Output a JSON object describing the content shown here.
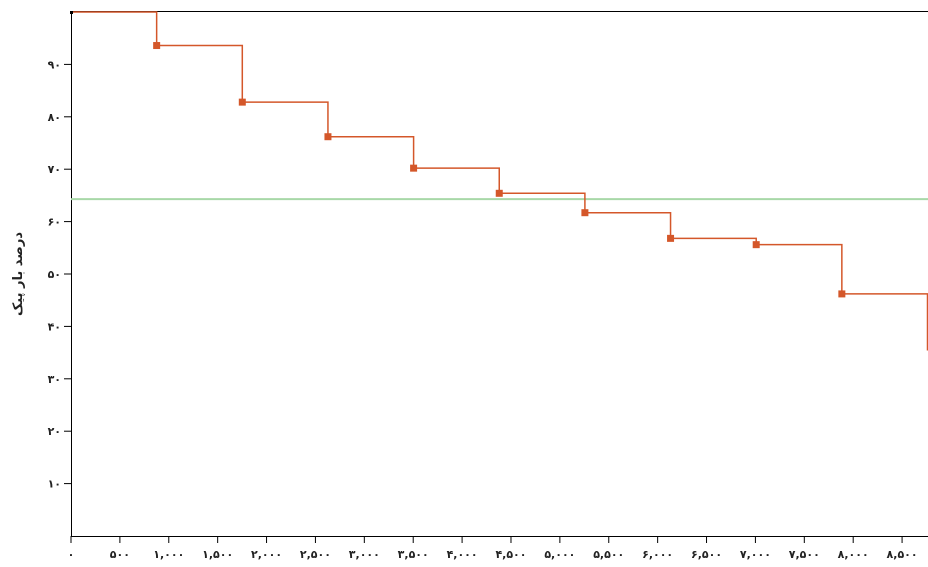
{
  "chart_data": {
    "type": "line",
    "line_style": "step",
    "title": "",
    "xlabel": "",
    "ylabel": "درصد بار پیک",
    "xlim": [
      0,
      8760
    ],
    "ylim": [
      0,
      100
    ],
    "x_ticks": [
      {
        "value": 0,
        "label": "۰"
      },
      {
        "value": 500,
        "label": "۵۰۰"
      },
      {
        "value": 1000,
        "label": "۱,۰۰۰"
      },
      {
        "value": 1500,
        "label": "۱,۵۰۰"
      },
      {
        "value": 2000,
        "label": "۲,۰۰۰"
      },
      {
        "value": 2500,
        "label": "۲,۵۰۰"
      },
      {
        "value": 3000,
        "label": "۳,۰۰۰"
      },
      {
        "value": 3500,
        "label": "۳,۵۰۰"
      },
      {
        "value": 4000,
        "label": "۴,۰۰۰"
      },
      {
        "value": 4500,
        "label": "۴,۵۰۰"
      },
      {
        "value": 5000,
        "label": "۵,۰۰۰"
      },
      {
        "value": 5500,
        "label": "۵,۵۰۰"
      },
      {
        "value": 6000,
        "label": "۶,۰۰۰"
      },
      {
        "value": 6500,
        "label": "۶,۵۰۰"
      },
      {
        "value": 7000,
        "label": "۷,۰۰۰"
      },
      {
        "value": 7500,
        "label": "۷,۵۰۰"
      },
      {
        "value": 8000,
        "label": "۸,۰۰۰"
      },
      {
        "value": 8500,
        "label": "۸,۵۰۰"
      }
    ],
    "y_ticks": [
      {
        "value": 10,
        "label": "۱۰"
      },
      {
        "value": 20,
        "label": "۲۰"
      },
      {
        "value": 30,
        "label": "۳۰"
      },
      {
        "value": 40,
        "label": "۴۰"
      },
      {
        "value": 50,
        "label": "۵۰"
      },
      {
        "value": 60,
        "label": "۶۰"
      },
      {
        "value": 70,
        "label": "۷۰"
      },
      {
        "value": 80,
        "label": "۸۰"
      },
      {
        "value": 90,
        "label": "۹۰"
      }
    ],
    "series": [
      {
        "color": "#d4572a",
        "points": [
          {
            "x": 0,
            "y": 100
          },
          {
            "x": 876,
            "y": 93.6
          },
          {
            "x": 1752,
            "y": 82.8
          },
          {
            "x": 2628,
            "y": 76.2
          },
          {
            "x": 3504,
            "y": 70.2
          },
          {
            "x": 4380,
            "y": 65.4
          },
          {
            "x": 5256,
            "y": 61.7
          },
          {
            "x": 6132,
            "y": 56.8
          },
          {
            "x": 7008,
            "y": 55.6
          },
          {
            "x": 7884,
            "y": 46.2
          },
          {
            "x": 8760,
            "y": 35.4
          }
        ]
      }
    ],
    "reference_lines": [
      {
        "y": 64.3,
        "color": "#a8d8a8"
      }
    ],
    "grid": false
  }
}
